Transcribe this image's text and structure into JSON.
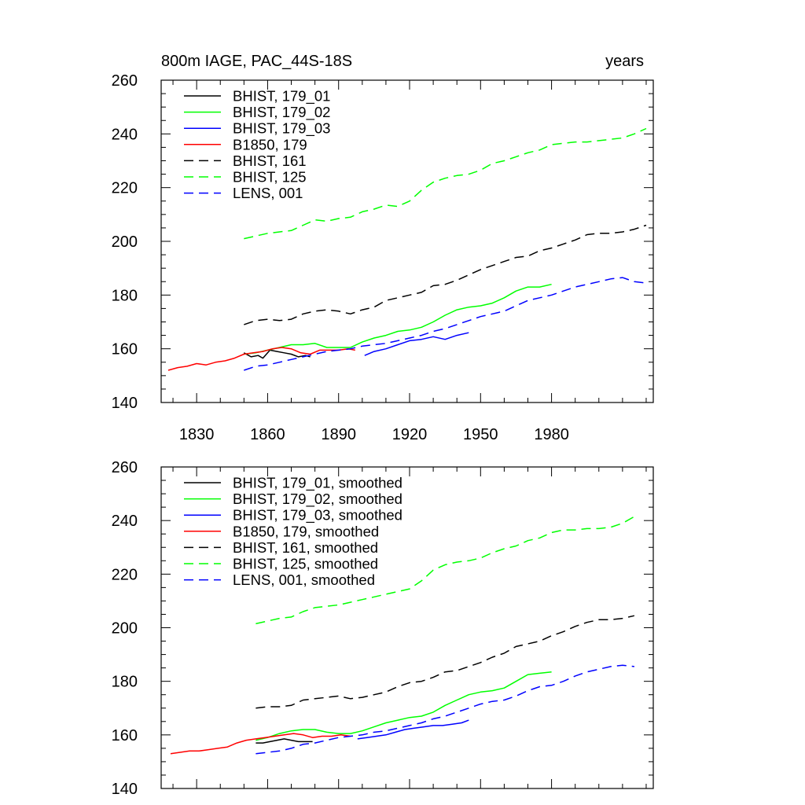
{
  "chart_data": [
    {
      "type": "line",
      "title_left": "800m IAGE, PAC_44S-18S",
      "title_right": "years",
      "xlim": [
        1815,
        2023
      ],
      "ylim": [
        140,
        260
      ],
      "x_ticks": [
        1830,
        1860,
        1890,
        1920,
        1950,
        1980
      ],
      "x_tick_labels": [
        "1830",
        "1860",
        "1890",
        "1920",
        "1950",
        "1980"
      ],
      "y_ticks": [
        140,
        160,
        180,
        200,
        220,
        240,
        260
      ],
      "y_tick_labels": [
        "140",
        "160",
        "180",
        "200",
        "220",
        "240",
        "260"
      ],
      "series": [
        {
          "name": "BHIST, 179_01",
          "color": "#000000",
          "dash": "solid",
          "x": [
            1850,
            1853,
            1856,
            1858,
            1861,
            1864,
            1867,
            1870,
            1873,
            1876,
            1878
          ],
          "y": [
            158.5,
            157,
            157.5,
            156.5,
            159.5,
            159,
            158.5,
            158,
            157,
            157.5,
            157
          ]
        },
        {
          "name": "BHIST, 179_02",
          "color": "#00ff00",
          "dash": "solid",
          "x": [
            1850,
            1855,
            1860,
            1865,
            1870,
            1875,
            1880,
            1885,
            1890,
            1895,
            1900,
            1905,
            1910,
            1915,
            1920,
            1925,
            1930,
            1935,
            1940,
            1945,
            1950,
            1955,
            1960,
            1965,
            1970,
            1975,
            1980
          ],
          "y": [
            158,
            158.5,
            159.5,
            160.5,
            161.5,
            161.5,
            162,
            160.5,
            160.5,
            160.5,
            162.5,
            164,
            165,
            166.5,
            167,
            168,
            170,
            172.5,
            174.5,
            175.5,
            176,
            177,
            179,
            181.5,
            183,
            183,
            184
          ]
        },
        {
          "name": "BHIST, 179_03",
          "color": "#0000ff",
          "dash": "solid",
          "x": [
            1901,
            1905,
            1910,
            1915,
            1920,
            1925,
            1930,
            1935,
            1940,
            1945
          ],
          "y": [
            157.5,
            159,
            160,
            161.5,
            163,
            163.5,
            164.5,
            163.5,
            165,
            166
          ]
        },
        {
          "name": "B1850, 179",
          "color": "#ff0000",
          "dash": "solid",
          "x": [
            1818,
            1822,
            1826,
            1830,
            1834,
            1838,
            1842,
            1846,
            1850,
            1854,
            1858,
            1862,
            1866,
            1870,
            1874,
            1878,
            1882,
            1886,
            1890,
            1894,
            1897
          ],
          "y": [
            152,
            153,
            153.5,
            154.5,
            154,
            155,
            155.5,
            156.5,
            158,
            158.5,
            159,
            160,
            160.5,
            160,
            158.5,
            158,
            159.5,
            159.5,
            159.5,
            160,
            159.5
          ]
        },
        {
          "name": "BHIST, 161",
          "color": "#000000",
          "dash": "dashed",
          "x": [
            1850,
            1855,
            1860,
            1865,
            1870,
            1875,
            1880,
            1885,
            1890,
            1895,
            1900,
            1905,
            1910,
            1915,
            1920,
            1925,
            1930,
            1935,
            1940,
            1945,
            1950,
            1955,
            1960,
            1965,
            1970,
            1975,
            1980,
            1985,
            1990,
            1995,
            2000,
            2005,
            2010,
            2015,
            2020
          ],
          "y": [
            169,
            170.5,
            171,
            170.5,
            171,
            173,
            174,
            174.5,
            174,
            173,
            174.5,
            175.5,
            178,
            179,
            180,
            181,
            183.5,
            184,
            185.5,
            187.5,
            189.5,
            191,
            192.5,
            194,
            194.5,
            196.5,
            197.5,
            199,
            200.5,
            202.5,
            203,
            203,
            203.5,
            204.5,
            206
          ]
        },
        {
          "name": "BHIST, 125",
          "color": "#00ff00",
          "dash": "dashed",
          "x": [
            1850,
            1855,
            1860,
            1865,
            1870,
            1875,
            1880,
            1885,
            1890,
            1895,
            1900,
            1905,
            1910,
            1915,
            1920,
            1925,
            1930,
            1935,
            1940,
            1945,
            1950,
            1955,
            1960,
            1965,
            1970,
            1975,
            1980,
            1985,
            1990,
            1995,
            2000,
            2005,
            2010,
            2015,
            2020
          ],
          "y": [
            201,
            202,
            203,
            203.5,
            204,
            206,
            208,
            207.5,
            208.5,
            209,
            211,
            212,
            213.5,
            213,
            215,
            219,
            222,
            223.5,
            224.5,
            225,
            226.5,
            229,
            230,
            231.5,
            233,
            234,
            236,
            236.5,
            237,
            237,
            237.5,
            238,
            238.5,
            240,
            242
          ]
        },
        {
          "name": "LENS, 001",
          "color": "#0000ff",
          "dash": "dashed",
          "x": [
            1850,
            1855,
            1860,
            1865,
            1870,
            1875,
            1880,
            1885,
            1890,
            1895,
            1900,
            1905,
            1910,
            1915,
            1920,
            1925,
            1930,
            1935,
            1940,
            1945,
            1950,
            1955,
            1960,
            1965,
            1970,
            1975,
            1980,
            1985,
            1990,
            1995,
            2000,
            2005,
            2010,
            2015,
            2020
          ],
          "y": [
            152,
            153.5,
            154,
            155,
            156,
            157,
            158,
            159,
            159.5,
            160,
            161,
            161.5,
            162,
            163,
            164,
            165,
            166.5,
            167.5,
            169,
            170.5,
            172,
            173,
            174,
            176,
            178,
            179,
            180,
            181.5,
            183,
            184,
            185,
            186,
            186.5,
            185,
            184.5
          ]
        }
      ]
    },
    {
      "type": "line",
      "title_left": "",
      "title_right": "",
      "xlim": [
        1815,
        2023
      ],
      "ylim": [
        140,
        260
      ],
      "x_ticks": [
        1830,
        1860,
        1890,
        1920,
        1950,
        1980
      ],
      "x_tick_labels": [],
      "y_ticks": [
        140,
        160,
        180,
        200,
        220,
        240,
        260
      ],
      "y_tick_labels": [
        "140",
        "160",
        "180",
        "200",
        "220",
        "240",
        "260"
      ],
      "series": [
        {
          "name": "BHIST, 179_01, smoothed",
          "color": "#000000",
          "dash": "solid",
          "x": [
            1855,
            1858,
            1861,
            1864,
            1867,
            1870,
            1873,
            1876,
            1879
          ],
          "y": [
            157,
            157,
            157.5,
            158,
            158.5,
            158,
            157.5,
            157.5,
            157.5
          ]
        },
        {
          "name": "BHIST, 179_02, smoothed",
          "color": "#00ff00",
          "dash": "solid",
          "x": [
            1855,
            1860,
            1865,
            1870,
            1875,
            1880,
            1885,
            1890,
            1895,
            1900,
            1905,
            1910,
            1915,
            1920,
            1925,
            1930,
            1935,
            1940,
            1945,
            1950,
            1955,
            1960,
            1965,
            1970,
            1975,
            1980
          ],
          "y": [
            158,
            159,
            160.5,
            161.5,
            162,
            162,
            161,
            160.5,
            160.5,
            161.5,
            163,
            164.5,
            165.5,
            166.5,
            167,
            168.5,
            171,
            173,
            175,
            176,
            176.5,
            177.5,
            180,
            182.5,
            183,
            183.5
          ]
        },
        {
          "name": "BHIST, 179_03, smoothed",
          "color": "#0000ff",
          "dash": "solid",
          "x": [
            1898,
            1902,
            1906,
            1910,
            1914,
            1918,
            1922,
            1926,
            1930,
            1934,
            1938,
            1942,
            1945
          ],
          "y": [
            158.5,
            159,
            159.5,
            160,
            161,
            162,
            162.5,
            163,
            163.5,
            163.5,
            164,
            164.5,
            165.5
          ]
        },
        {
          "name": "B1850, 179, smoothed",
          "color": "#ff0000",
          "dash": "solid",
          "x": [
            1819,
            1823,
            1827,
            1831,
            1835,
            1839,
            1843,
            1847,
            1851,
            1855,
            1859,
            1863,
            1867,
            1871,
            1875,
            1879,
            1883,
            1887,
            1891,
            1895
          ],
          "y": [
            153,
            153.5,
            154,
            154,
            154.5,
            155,
            155.5,
            157,
            158,
            158.5,
            159,
            159.5,
            160,
            160.5,
            160,
            159,
            159.5,
            159.5,
            160,
            159.5
          ]
        },
        {
          "name": "BHIST, 161, smoothed",
          "color": "#000000",
          "dash": "dashed",
          "x": [
            1855,
            1860,
            1865,
            1870,
            1875,
            1880,
            1885,
            1890,
            1895,
            1900,
            1905,
            1910,
            1915,
            1920,
            1925,
            1930,
            1935,
            1940,
            1945,
            1950,
            1955,
            1960,
            1965,
            1970,
            1975,
            1980,
            1985,
            1990,
            1995,
            2000,
            2005,
            2010,
            2015
          ],
          "y": [
            170,
            170.5,
            170.5,
            171,
            173,
            173.5,
            174,
            174.5,
            173.5,
            174,
            175,
            176,
            178,
            179.5,
            180,
            181.5,
            183.5,
            184,
            185.5,
            187,
            189,
            190.5,
            193,
            194,
            195,
            197,
            198.5,
            200.5,
            202,
            203,
            203,
            203.5,
            204.5
          ]
        },
        {
          "name": "BHIST, 125, smoothed",
          "color": "#00ff00",
          "dash": "dashed",
          "x": [
            1855,
            1860,
            1865,
            1870,
            1875,
            1880,
            1885,
            1890,
            1895,
            1900,
            1905,
            1910,
            1915,
            1920,
            1925,
            1930,
            1935,
            1940,
            1945,
            1950,
            1955,
            1960,
            1965,
            1970,
            1975,
            1980,
            1985,
            1990,
            1995,
            2000,
            2005,
            2010,
            2015
          ],
          "y": [
            201.5,
            202.5,
            203.5,
            204,
            206,
            207.5,
            208,
            208.5,
            209.5,
            210.5,
            211.5,
            212.5,
            213.5,
            214.5,
            217.5,
            221.5,
            223.5,
            224.5,
            225,
            226,
            228,
            229.5,
            230.5,
            232.5,
            233.5,
            235.5,
            236.5,
            236.5,
            237,
            237,
            237.5,
            239,
            241.5
          ]
        },
        {
          "name": "LENS, 001, smoothed",
          "color": "#0000ff",
          "dash": "dashed",
          "x": [
            1855,
            1860,
            1865,
            1870,
            1875,
            1880,
            1885,
            1890,
            1895,
            1900,
            1905,
            1910,
            1915,
            1920,
            1925,
            1930,
            1935,
            1940,
            1945,
            1950,
            1955,
            1960,
            1965,
            1970,
            1975,
            1980,
            1985,
            1990,
            1995,
            2000,
            2005,
            2010,
            2015
          ],
          "y": [
            153,
            153.5,
            154,
            155,
            156.5,
            157,
            158,
            159,
            159.5,
            160,
            161,
            161.5,
            162.5,
            163.5,
            164.5,
            166,
            167,
            168.5,
            170,
            171.5,
            172.5,
            173,
            174.5,
            176.5,
            178,
            178.5,
            180,
            182,
            183.5,
            184.5,
            185.5,
            186,
            185.5
          ]
        }
      ]
    }
  ]
}
